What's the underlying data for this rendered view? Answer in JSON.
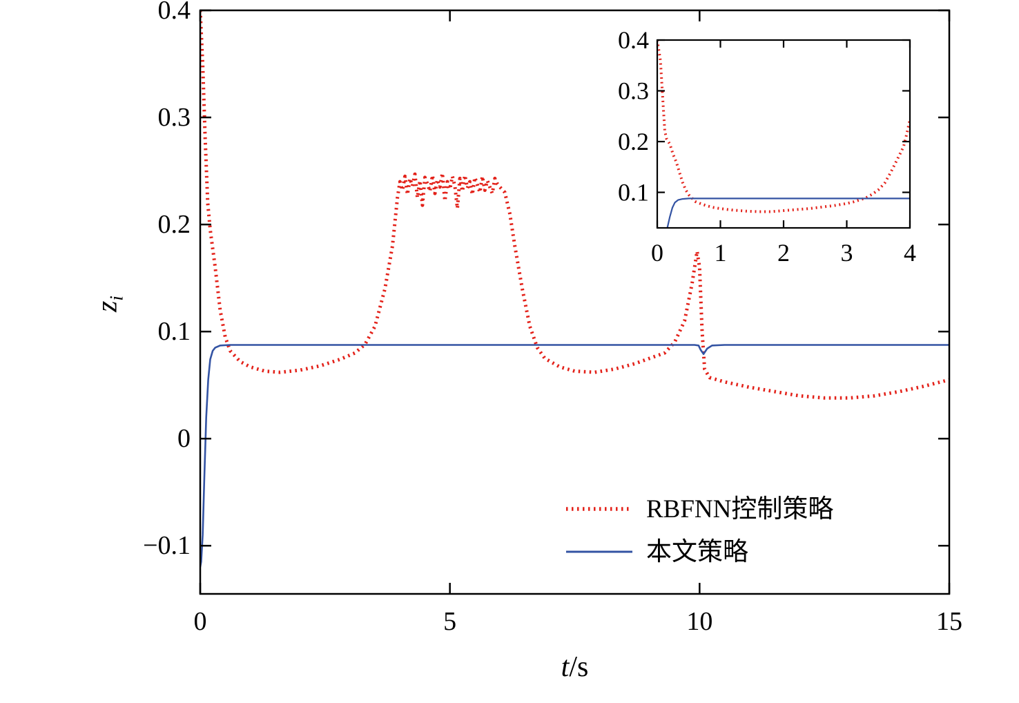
{
  "figure": {
    "background": "#ffffff"
  },
  "chart_data": {
    "type": "line",
    "title": "",
    "xlabel": {
      "italic": "t",
      "rest": "/s"
    },
    "ylabel": {
      "italic": "z",
      "sub": "i"
    },
    "legend": [
      "RBFNN控制策略",
      "本文策略"
    ],
    "colors": {
      "rbfnn": "#e32119",
      "proposed": "#3353a3",
      "axis": "#000000"
    },
    "legend_position": "lower right inside plot",
    "grid": false,
    "main": {
      "xlim": [
        0,
        15
      ],
      "ylim": [
        -0.145,
        0.4
      ],
      "xticks": [
        0,
        5,
        10,
        15
      ],
      "xtick_labels": [
        "0",
        "5",
        "10",
        "15"
      ],
      "yticks": [
        -0.1,
        0,
        0.1,
        0.2,
        0.3,
        0.4
      ],
      "ytick_labels": [
        "−0.1",
        "0",
        "0.1",
        "0.2",
        "0.3",
        "0.4"
      ],
      "series": [
        {
          "id": "rbfnn",
          "name": "RBFNN控制策略",
          "color": "#e32119",
          "style": "dotted",
          "x": [
            0,
            0.05,
            0.1,
            0.15,
            0.2,
            0.3,
            0.4,
            0.5,
            0.6,
            0.8,
            1.0,
            1.3,
            1.6,
            2.0,
            2.4,
            2.8,
            3.1,
            3.3,
            3.5,
            3.7,
            3.85,
            3.95,
            4.0,
            4.05,
            4.1,
            4.15,
            4.2,
            4.25,
            4.3,
            4.35,
            4.4,
            4.45,
            4.5,
            4.55,
            4.6,
            4.65,
            4.7,
            4.75,
            4.8,
            4.85,
            4.9,
            4.95,
            5.0,
            5.05,
            5.1,
            5.15,
            5.2,
            5.25,
            5.3,
            5.35,
            5.4,
            5.45,
            5.5,
            5.55,
            5.6,
            5.65,
            5.7,
            5.75,
            5.8,
            5.85,
            5.9,
            5.95,
            6.0,
            6.1,
            6.2,
            6.3,
            6.45,
            6.6,
            6.75,
            6.9,
            7.2,
            7.5,
            7.9,
            8.3,
            8.7,
            9.0,
            9.3,
            9.5,
            9.7,
            9.85,
            9.95,
            10.0,
            10.05,
            10.1,
            10.2,
            10.5,
            11.0,
            11.5,
            12.0,
            12.5,
            13.0,
            13.5,
            14.0,
            14.5,
            15.0
          ],
          "y": [
            0.4,
            0.35,
            0.28,
            0.22,
            0.195,
            0.16,
            0.12,
            0.095,
            0.082,
            0.072,
            0.067,
            0.063,
            0.062,
            0.064,
            0.068,
            0.074,
            0.08,
            0.088,
            0.105,
            0.14,
            0.18,
            0.225,
            0.24,
            0.232,
            0.245,
            0.228,
            0.243,
            0.236,
            0.247,
            0.225,
            0.241,
            0.218,
            0.244,
            0.238,
            0.231,
            0.246,
            0.229,
            0.242,
            0.235,
            0.248,
            0.222,
            0.24,
            0.233,
            0.245,
            0.236,
            0.215,
            0.243,
            0.231,
            0.246,
            0.234,
            0.24,
            0.228,
            0.244,
            0.237,
            0.23,
            0.245,
            0.232,
            0.241,
            0.235,
            0.229,
            0.243,
            0.238,
            0.235,
            0.23,
            0.21,
            0.18,
            0.14,
            0.105,
            0.085,
            0.075,
            0.067,
            0.063,
            0.062,
            0.065,
            0.07,
            0.075,
            0.08,
            0.09,
            0.11,
            0.145,
            0.175,
            0.16,
            0.1,
            0.065,
            0.057,
            0.053,
            0.048,
            0.044,
            0.04,
            0.038,
            0.038,
            0.04,
            0.044,
            0.049,
            0.055
          ]
        },
        {
          "id": "proposed",
          "name": "本文策略",
          "color": "#3353a3",
          "style": "solid",
          "x": [
            0,
            0.02,
            0.05,
            0.08,
            0.12,
            0.16,
            0.2,
            0.25,
            0.3,
            0.4,
            0.6,
            1.0,
            2.0,
            3.0,
            4.0,
            5.0,
            6.0,
            7.0,
            8.0,
            9.0,
            9.9,
            9.98,
            10.02,
            10.08,
            10.15,
            10.25,
            10.5,
            11.0,
            12.0,
            13.0,
            14.0,
            15.0
          ],
          "y": [
            -0.12,
            -0.115,
            -0.09,
            -0.04,
            0.02,
            0.055,
            0.074,
            0.082,
            0.085,
            0.087,
            0.0875,
            0.0875,
            0.0875,
            0.0875,
            0.0875,
            0.0875,
            0.0875,
            0.0875,
            0.0875,
            0.0875,
            0.0875,
            0.087,
            0.083,
            0.079,
            0.084,
            0.087,
            0.0875,
            0.0875,
            0.0875,
            0.0875,
            0.0875,
            0.0875
          ]
        }
      ]
    },
    "inset": {
      "xlim": [
        0,
        4
      ],
      "ylim": [
        0.03,
        0.4
      ],
      "xticks": [
        0,
        1,
        2,
        3,
        4
      ],
      "xtick_labels": [
        "0",
        "1",
        "2",
        "3",
        "4"
      ],
      "yticks": [
        0.1,
        0.2,
        0.3,
        0.4
      ],
      "ytick_labels": [
        "0.1",
        "0.2",
        "0.3",
        "0.4"
      ],
      "series": [
        {
          "id": "rbfnn",
          "name": "RBFNN控制策略",
          "color": "#e32119",
          "style": "dotted",
          "x": [
            0,
            0.05,
            0.08,
            0.1,
            0.12,
            0.15,
            0.2,
            0.25,
            0.3,
            0.35,
            0.4,
            0.45,
            0.5,
            0.6,
            0.7,
            0.8,
            0.9,
            1.0,
            1.2,
            1.4,
            1.6,
            1.8,
            2.0,
            2.2,
            2.4,
            2.6,
            2.8,
            3.0,
            3.1,
            3.2,
            3.3,
            3.4,
            3.5,
            3.6,
            3.7,
            3.8,
            3.9,
            3.95,
            4.0
          ],
          "y": [
            0.4,
            0.36,
            0.3,
            0.26,
            0.22,
            0.205,
            0.195,
            0.175,
            0.16,
            0.14,
            0.12,
            0.105,
            0.095,
            0.082,
            0.077,
            0.073,
            0.07,
            0.068,
            0.065,
            0.063,
            0.062,
            0.062,
            0.064,
            0.066,
            0.068,
            0.071,
            0.074,
            0.078,
            0.081,
            0.085,
            0.089,
            0.096,
            0.105,
            0.118,
            0.14,
            0.165,
            0.19,
            0.215,
            0.243
          ]
        },
        {
          "id": "proposed",
          "name": "本文策略",
          "color": "#3353a3",
          "style": "solid",
          "x": [
            0.16,
            0.2,
            0.24,
            0.28,
            0.33,
            0.4,
            0.5,
            0.7,
            1.0,
            1.5,
            2.0,
            2.5,
            3.0,
            3.5,
            4.0
          ],
          "y": [
            0.03,
            0.052,
            0.07,
            0.08,
            0.085,
            0.087,
            0.088,
            0.088,
            0.088,
            0.088,
            0.088,
            0.088,
            0.088,
            0.088,
            0.088
          ]
        }
      ]
    }
  }
}
